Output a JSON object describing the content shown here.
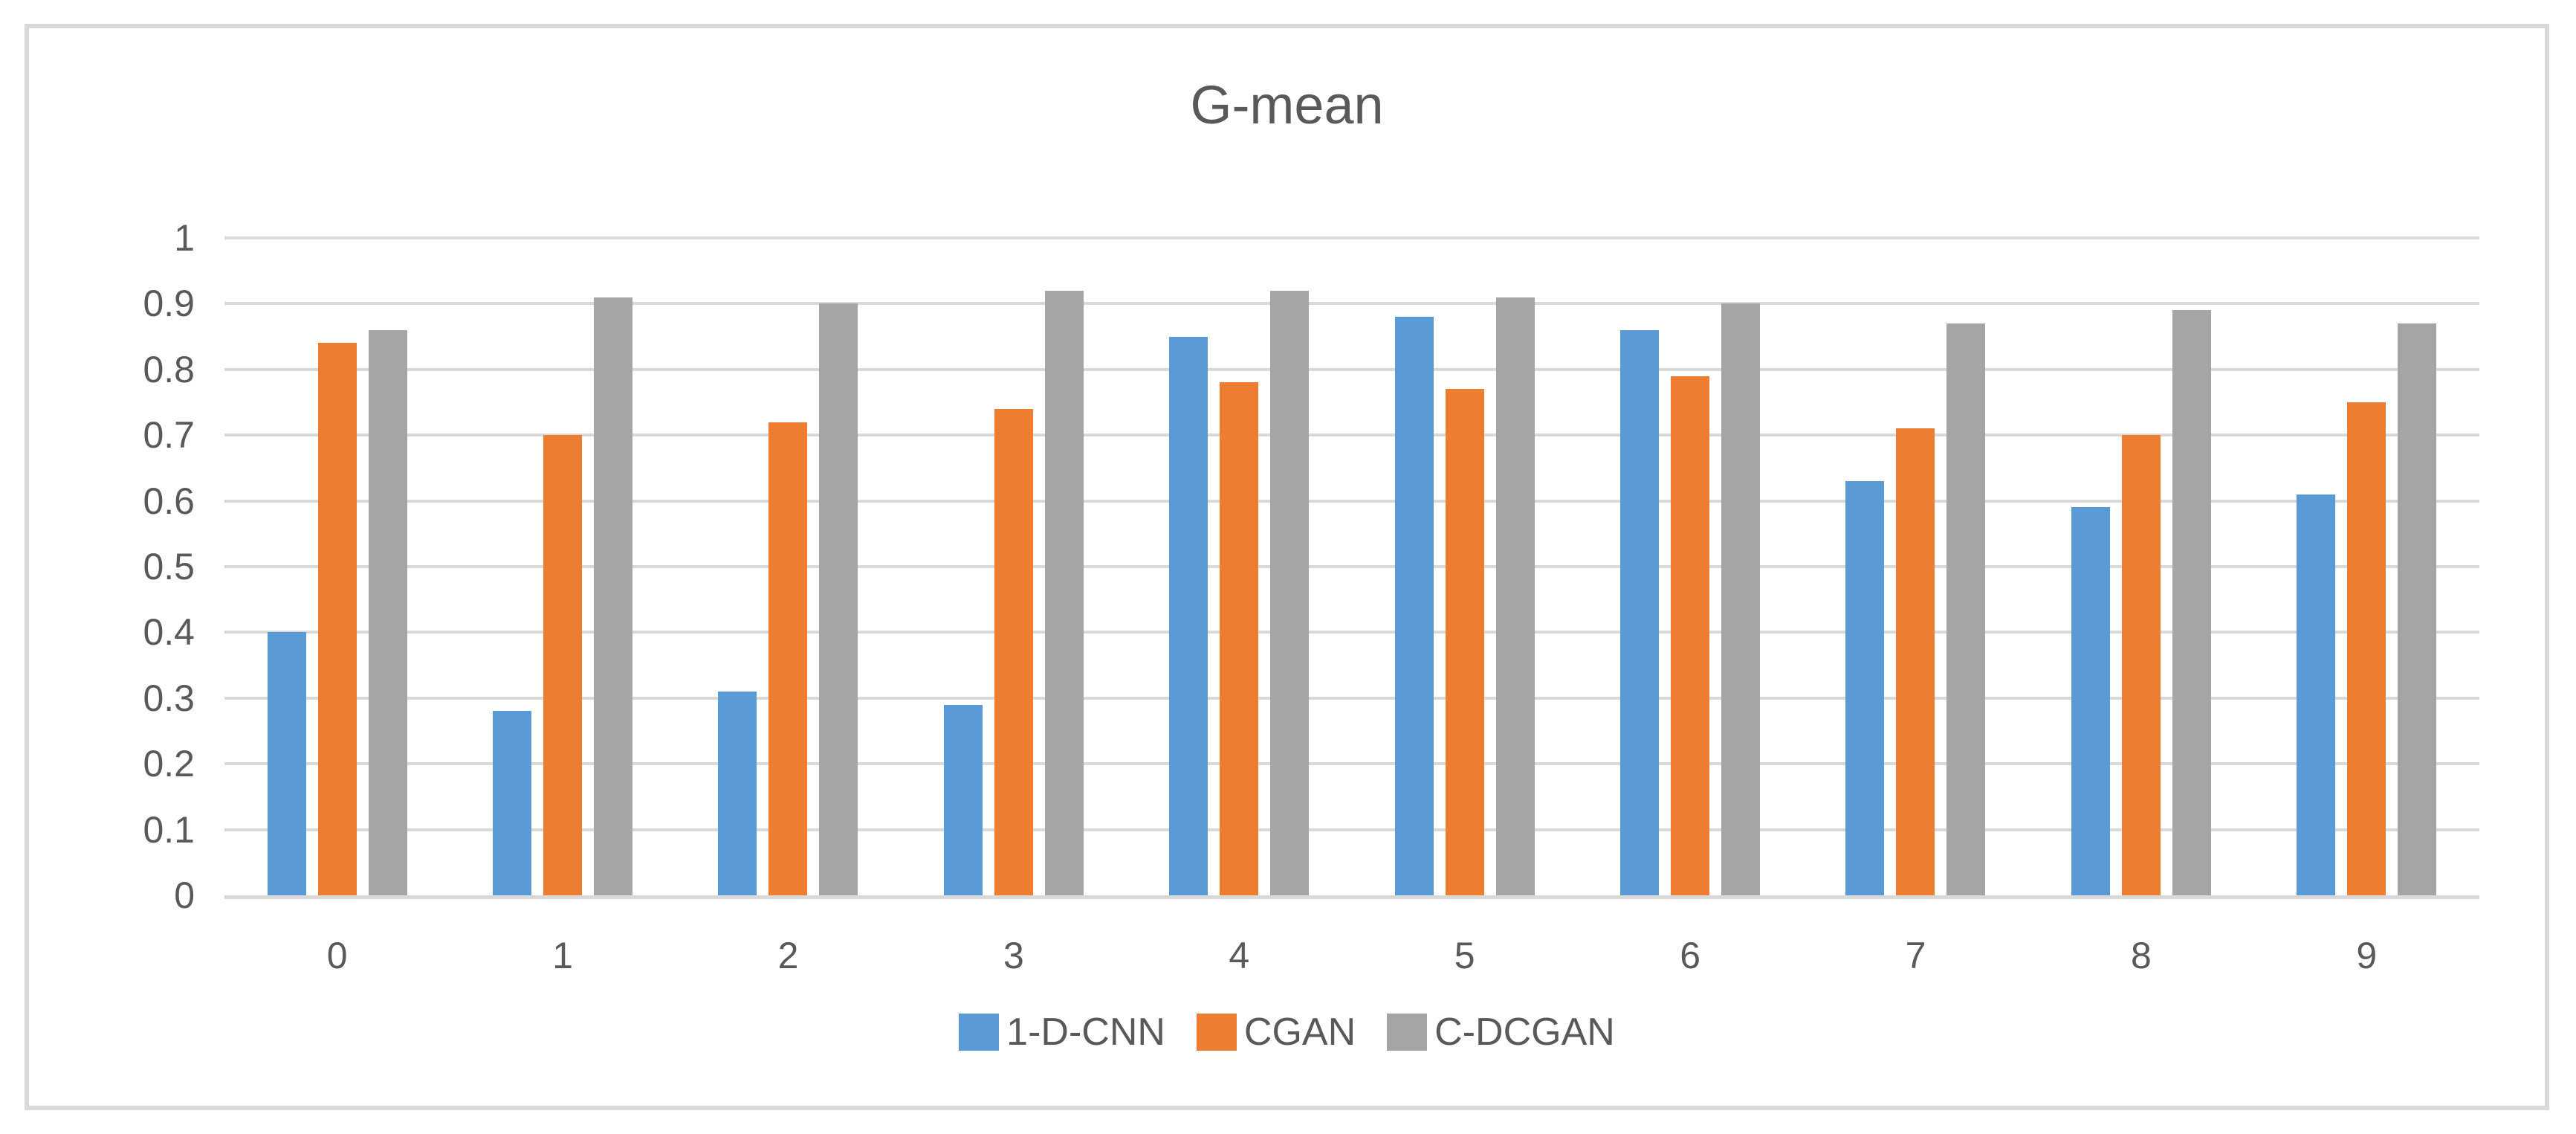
{
  "chart_data": {
    "type": "bar",
    "title": "G-mean",
    "categories": [
      "0",
      "1",
      "2",
      "3",
      "4",
      "5",
      "6",
      "7",
      "8",
      "9"
    ],
    "series": [
      {
        "name": "1-D-CNN",
        "color": "#5B9BD5",
        "values": [
          0.4,
          0.28,
          0.31,
          0.29,
          0.85,
          0.88,
          0.86,
          0.63,
          0.59,
          0.61
        ]
      },
      {
        "name": "CGAN",
        "color": "#ED7D31",
        "values": [
          0.84,
          0.7,
          0.72,
          0.74,
          0.78,
          0.77,
          0.79,
          0.71,
          0.7,
          0.75
        ]
      },
      {
        "name": "C-DCGAN",
        "color": "#A5A5A5",
        "values": [
          0.86,
          0.91,
          0.9,
          0.92,
          0.92,
          0.91,
          0.9,
          0.87,
          0.89,
          0.87
        ]
      }
    ],
    "xlabel": "",
    "ylabel": "",
    "y_axis": {
      "min": 0,
      "max": 1,
      "step": 0.1,
      "tick_labels": [
        "1",
        "0.9",
        "0.8",
        "0.7",
        "0.6",
        "0.5",
        "0.4",
        "0.3",
        "0.2",
        "0.1",
        "0"
      ]
    },
    "grid": "horizontal",
    "legend_position": "bottom"
  },
  "style": {
    "gridline_color": "#D9D9D9",
    "frame_border_color": "#D9D9D9",
    "text_color": "#595959",
    "background_color": "#FFFFFF"
  }
}
